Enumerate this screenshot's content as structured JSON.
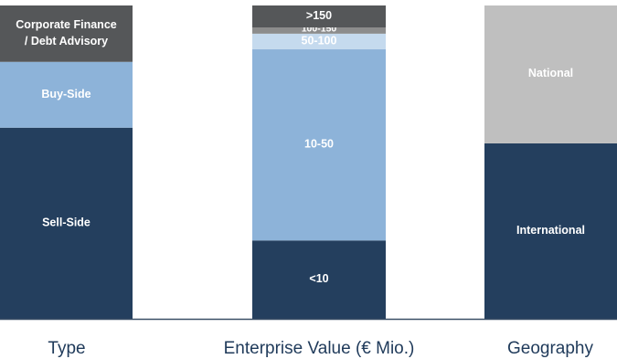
{
  "chart_data": {
    "type": "bar",
    "stacked": true,
    "normalized": true,
    "title": "",
    "xlabel": "",
    "ylabel": "",
    "ylim": [
      0,
      100
    ],
    "grid": false,
    "legend": "none",
    "categories": [
      "Type",
      "Enterprise Value (€ Mio.)",
      "Geography"
    ],
    "bars": [
      {
        "category": "Type",
        "segments": [
          {
            "label": "Sell-Side",
            "value": 61,
            "color": "#243f5e"
          },
          {
            "label": "Buy-Side",
            "value": 21,
            "color": "#8db3d9"
          },
          {
            "label": "Corporate Finance\n/ Debt Advisory",
            "value": 18,
            "color": "#555759"
          }
        ]
      },
      {
        "category": "Enterprise Value (€ Mio.)",
        "segments": [
          {
            "label": "<10",
            "value": 25,
            "color": "#243f5e"
          },
          {
            "label": "10-50",
            "value": 61,
            "color": "#8db3d9"
          },
          {
            "label": "50-100",
            "value": 5,
            "color": "#c5daee"
          },
          {
            "label": "100-150",
            "value": 2,
            "color": "#8c8c8c"
          },
          {
            "label": ">150",
            "value": 7,
            "color": "#555759"
          }
        ]
      },
      {
        "category": "Geography",
        "segments": [
          {
            "label": "International",
            "value": 56,
            "color": "#243f5e"
          },
          {
            "label": "National",
            "value": 44,
            "color": "#bfbfbf"
          }
        ]
      }
    ],
    "colors": {
      "axis": "#3a4f66",
      "category_text": "#1f3a5a",
      "segment_text": "#ffffff"
    }
  }
}
